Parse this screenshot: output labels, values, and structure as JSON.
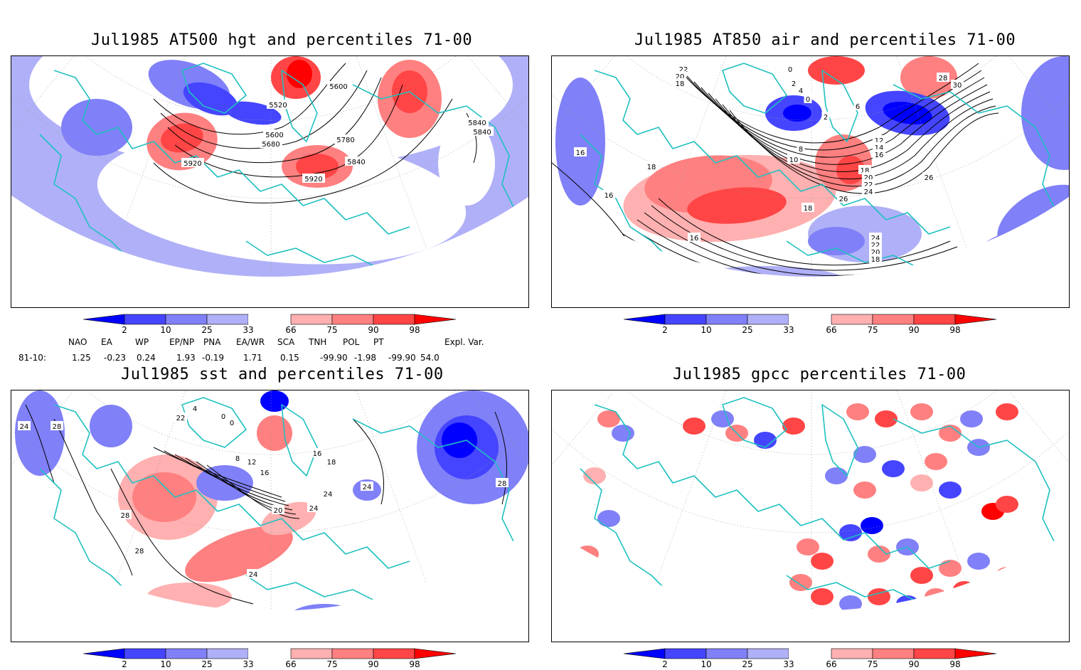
{
  "colors": {
    "teal": "#20c0c0",
    "blue_dark": "#0000ff",
    "blue_mid": "#4545ff",
    "blue_light": "#8080f8",
    "blue_pale": "#b0b0f8",
    "red_pale": "#ffb0b0",
    "red_light": "#ff8080",
    "red_mid": "#ff4545",
    "red_dark": "#ff0000"
  },
  "colorbar": {
    "ticks": [
      "2",
      "10",
      "25",
      "33",
      "66",
      "75",
      "90",
      "98"
    ]
  },
  "panels": [
    {
      "id": "hgt",
      "title": "Jul1985 AT500 hgt and percentiles 71-00",
      "contour_labels": [
        "5600",
        "5520",
        "5600",
        "5680",
        "5780",
        "5840",
        "5920",
        "5920",
        "5840",
        "5840"
      ]
    },
    {
      "id": "air",
      "title": "Jul1985 AT850 air and percentiles 71-00",
      "contour_labels": [
        "22",
        "20",
        "18",
        "0",
        "2",
        "4",
        "0",
        "2",
        "6",
        "8",
        "10",
        "12",
        "14",
        "16",
        "18",
        "20",
        "22",
        "24",
        "26",
        "28",
        "30",
        "16",
        "18",
        "18",
        "16",
        "16",
        "26",
        "24",
        "22",
        "20",
        "18",
        "16",
        "16"
      ]
    },
    {
      "id": "sst",
      "title": "Jul1985 sst and percentiles 71-00",
      "contour_labels": [
        "24",
        "28",
        "22",
        "4",
        "0",
        "0",
        "8",
        "12",
        "16",
        "20",
        "24",
        "24",
        "24",
        "28",
        "28",
        "28",
        "24",
        "16",
        "18"
      ]
    },
    {
      "id": "gpcc",
      "title": "Jul1985 gpcc percentiles 71-00",
      "contour_labels": []
    }
  ],
  "indices": {
    "headers": [
      "NAO",
      "EA",
      "WP",
      "EP/NP",
      "PNA",
      "EA/WR",
      "SCA",
      "TNH",
      "POL",
      "PT",
      "Expl. Var."
    ],
    "row_label": "81-10:",
    "values": [
      "1.25",
      "-0.23",
      "0.24",
      "1.93",
      "-0.19",
      "1.71",
      "0.15",
      "-99.90",
      "-1.98",
      "-99.90",
      "54.0"
    ]
  }
}
